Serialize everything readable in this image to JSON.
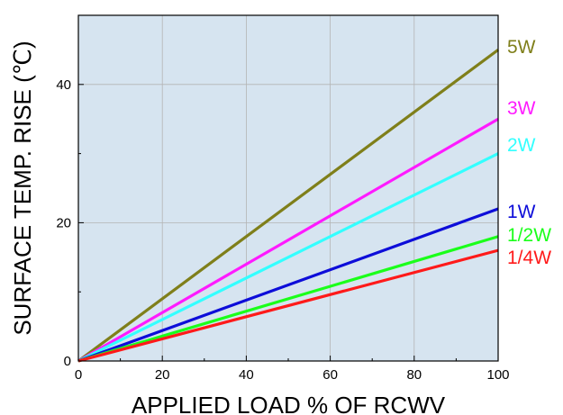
{
  "chart_data": {
    "type": "line",
    "xlabel": "APPLIED LOAD % OF RCWV",
    "ylabel": "SURFACE TEMP. RISE (℃)",
    "xlim": [
      0,
      100
    ],
    "ylim": [
      0,
      50
    ],
    "xticks": [
      0,
      20,
      40,
      60,
      80,
      100
    ],
    "yticks": [
      0,
      20,
      40
    ],
    "grid": true,
    "legend": "series labels at right end of lines",
    "background_color": "#d6e4f0",
    "series": [
      {
        "name": "5W",
        "color": "#7f7f1a",
        "x": [
          0,
          100
        ],
        "y": [
          0,
          45
        ]
      },
      {
        "name": "3W",
        "color": "#ff1aff",
        "x": [
          0,
          100
        ],
        "y": [
          0,
          35
        ]
      },
      {
        "name": "2W",
        "color": "#33ffff",
        "x": [
          0,
          100
        ],
        "y": [
          0,
          30
        ]
      },
      {
        "name": "1W",
        "color": "#0d0dd9",
        "x": [
          0,
          100
        ],
        "y": [
          0,
          22
        ]
      },
      {
        "name": "1/2W",
        "color": "#1aff1a",
        "x": [
          0,
          100
        ],
        "y": [
          0,
          18
        ]
      },
      {
        "name": "1/4W",
        "color": "#ff1a1a",
        "x": [
          0,
          100
        ],
        "y": [
          0,
          16
        ]
      }
    ]
  }
}
